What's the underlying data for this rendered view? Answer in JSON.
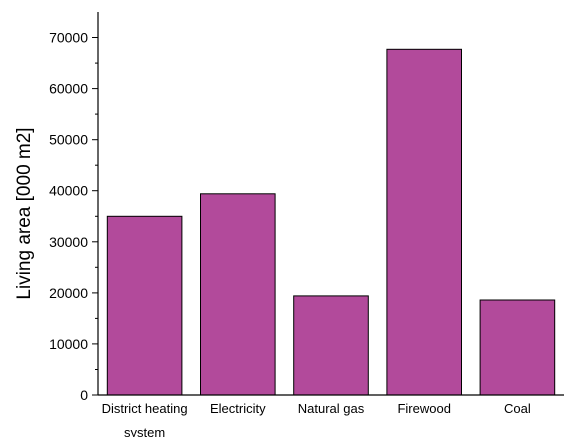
{
  "chart_data": {
    "type": "bar",
    "title": "",
    "xlabel": "",
    "ylabel": "Living area [000 m2]",
    "categories": [
      [
        "District heating",
        "system"
      ],
      [
        "Electricity"
      ],
      [
        "Natural gas"
      ],
      [
        "Firewood"
      ],
      [
        "Coal"
      ]
    ],
    "values": [
      35000,
      39400,
      19400,
      67700,
      18600
    ],
    "ylim": [
      0,
      75000
    ],
    "yticks": [
      0,
      10000,
      20000,
      30000,
      40000,
      50000,
      60000,
      70000
    ],
    "grid": false,
    "legend": "none",
    "bar_color": "#b24a9b",
    "edge_color": "#000000"
  }
}
